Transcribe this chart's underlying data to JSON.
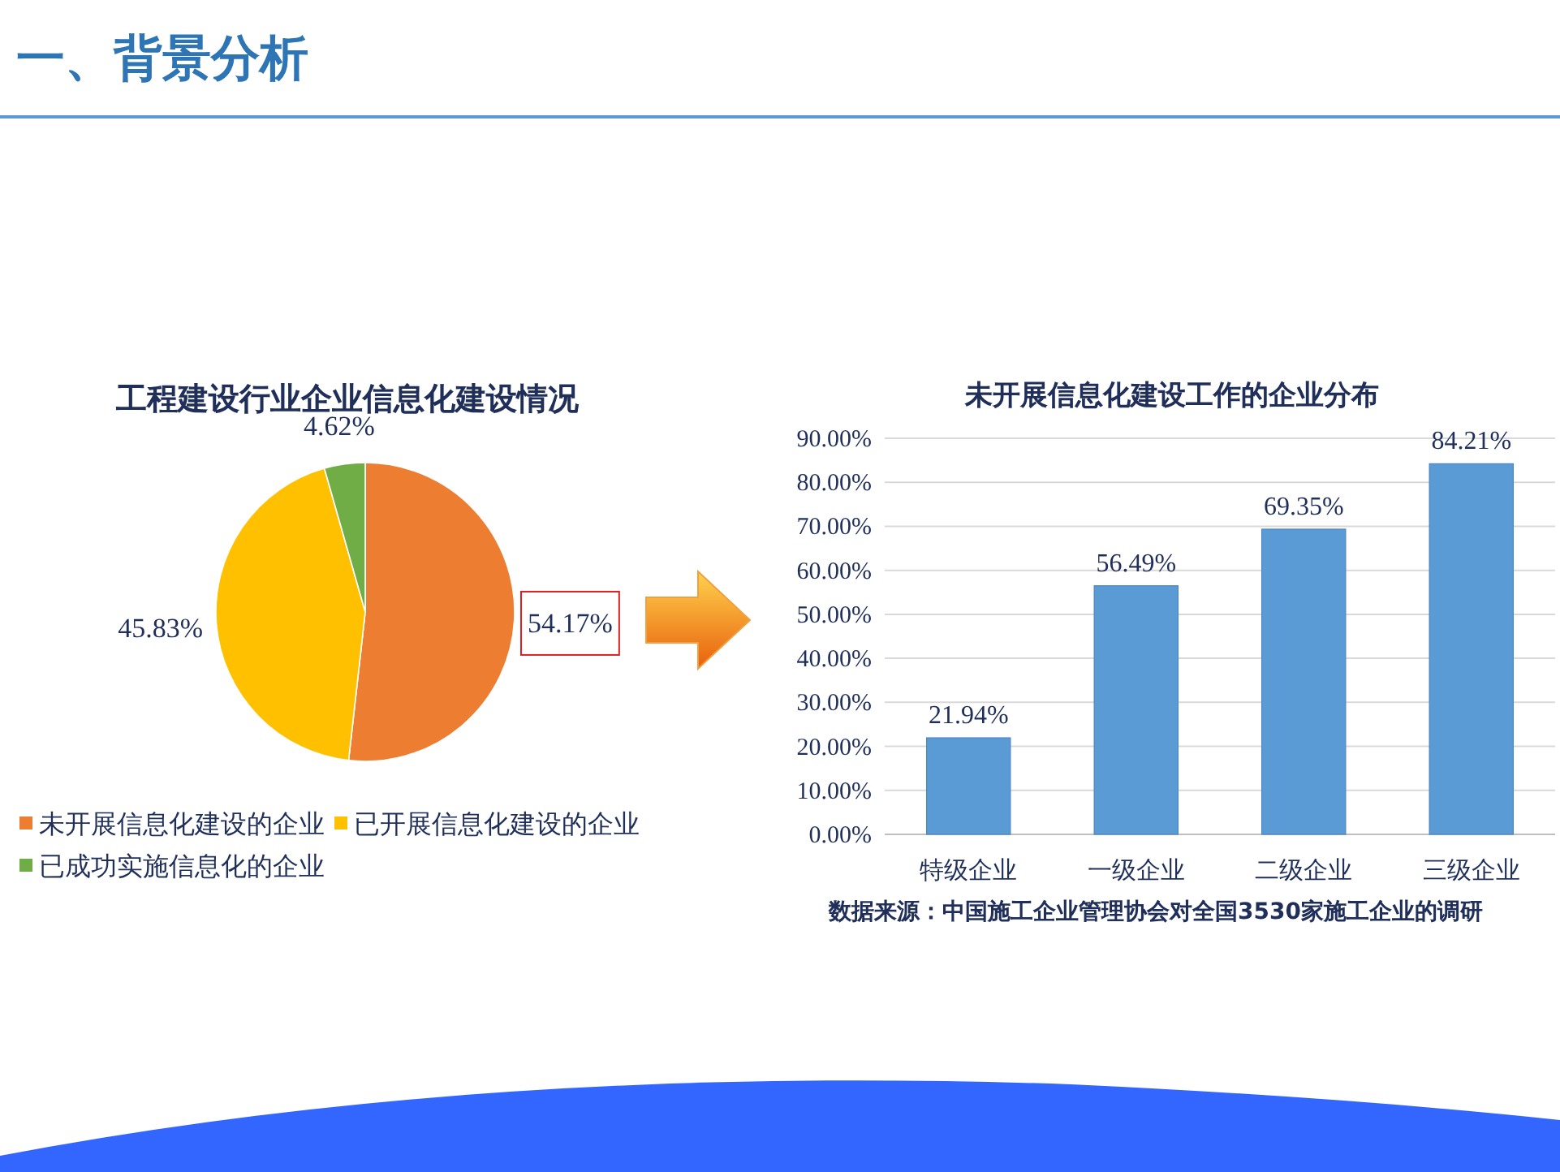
{
  "chart_data": [
    {
      "type": "pie",
      "title": "工程建设行业企业信息化建设情况",
      "categories": [
        "未开展信息化建设的企业",
        "已开展信息化建设的企业",
        "已成功实施信息化的企业"
      ],
      "values": [
        54.17,
        45.83,
        4.62
      ],
      "value_labels": [
        "54.17%",
        "45.83%",
        "4.62%"
      ],
      "colors": [
        "#ed7d31",
        "#ffc000",
        "#70ad47"
      ],
      "legend": "bottom",
      "annotations": [
        "一、背景分析"
      ]
    },
    {
      "type": "bar",
      "title": "未开展信息化建设工作的企业分布",
      "categories": [
        "特级企业",
        "一级企业",
        "二级企业",
        "三级企业"
      ],
      "values": [
        21.94,
        56.49,
        69.35,
        84.21
      ],
      "value_labels": [
        "21.94%",
        "56.49%",
        "69.35%",
        "84.21%"
      ],
      "color": "#5b9bd5",
      "ylim": [
        0,
        90
      ],
      "yticks": [
        {
          "value": 0,
          "label": "0.00%"
        },
        {
          "value": 10,
          "label": "10.00%"
        },
        {
          "value": 20,
          "label": "20.00%"
        },
        {
          "value": 30,
          "label": "30.00%"
        },
        {
          "value": 40,
          "label": "40.00%"
        },
        {
          "value": 50,
          "label": "50.00%"
        },
        {
          "value": 60,
          "label": "60.00%"
        },
        {
          "value": 70,
          "label": "70.00%"
        },
        {
          "value": 80,
          "label": "80.00%"
        },
        {
          "value": 90,
          "label": "90.00%"
        }
      ],
      "grid": "y",
      "annotations": [
        "数据来源：中国施工企业管理协会对全国3530家施工企业的调研"
      ]
    }
  ]
}
